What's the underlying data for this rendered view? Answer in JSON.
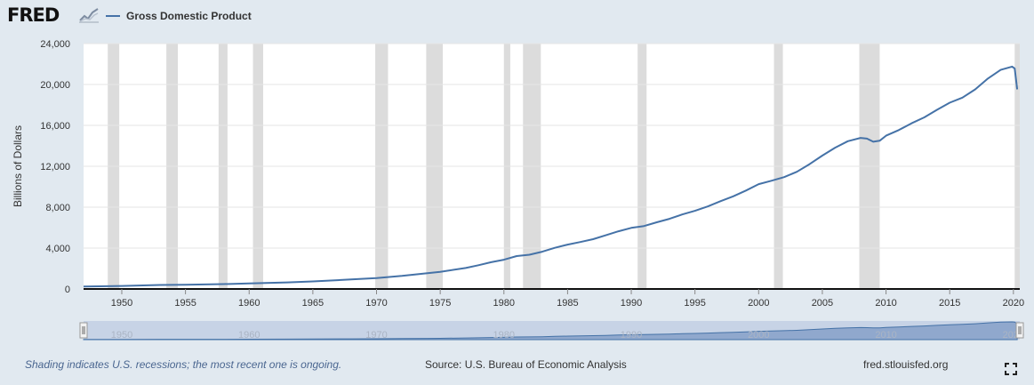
{
  "header": {
    "logo": "FRED",
    "logo_icon": "trend-line-icon"
  },
  "chart_data": {
    "type": "line",
    "title": "",
    "xlabel": "",
    "ylabel": "Billions of Dollars",
    "xlim": [
      1947,
      2020.5
    ],
    "ylim": [
      0,
      24000
    ],
    "y_ticks": [
      0,
      4000,
      8000,
      12000,
      16000,
      20000,
      24000
    ],
    "y_tick_labels": [
      "0",
      "4,000",
      "8,000",
      "12,000",
      "16,000",
      "20,000",
      "24,000"
    ],
    "x_ticks": [
      1950,
      1955,
      1960,
      1965,
      1970,
      1975,
      1980,
      1985,
      1990,
      1995,
      2000,
      2005,
      2010,
      2015,
      2020
    ],
    "x_tick_labels": [
      "1950",
      "1955",
      "1960",
      "1965",
      "1970",
      "1975",
      "1980",
      "1985",
      "1990",
      "1995",
      "2000",
      "2005",
      "2010",
      "2015",
      "2020"
    ],
    "grid": true,
    "legend_position": "top-left",
    "line_color": "#4572a7",
    "recession_color": "#dcdcdc",
    "recessions": [
      [
        1948.9,
        1949.8
      ],
      [
        1953.5,
        1954.4
      ],
      [
        1957.6,
        1958.3
      ],
      [
        1960.3,
        1961.1
      ],
      [
        1969.9,
        1970.9
      ],
      [
        1973.9,
        1975.2
      ],
      [
        1980.0,
        1980.5
      ],
      [
        1981.5,
        1982.9
      ],
      [
        1990.5,
        1991.2
      ],
      [
        2001.2,
        2001.9
      ],
      [
        2007.9,
        2009.5
      ],
      [
        2020.1,
        2020.5
      ]
    ],
    "series": [
      {
        "name": "Gross Domestic Product",
        "x": [
          1947,
          1950,
          1953,
          1955,
          1958,
          1960,
          1963,
          1965,
          1968,
          1970,
          1972,
          1974,
          1975,
          1977,
          1978,
          1979,
          1980,
          1981,
          1982,
          1983,
          1984,
          1985,
          1986,
          1987,
          1988,
          1989,
          1990,
          1991,
          1992,
          1993,
          1994,
          1995,
          1996,
          1997,
          1998,
          1999,
          2000,
          2001,
          2002,
          2003,
          2004,
          2005,
          2006,
          2007,
          2008,
          2008.5,
          2009,
          2009.5,
          2010,
          2011,
          2012,
          2013,
          2014,
          2015,
          2016,
          2017,
          2018,
          2019,
          2019.9,
          2020.1,
          2020.3
        ],
        "values": [
          245,
          300,
          390,
          420,
          480,
          540,
          640,
          740,
          930,
          1070,
          1280,
          1550,
          1680,
          2050,
          2320,
          2620,
          2860,
          3220,
          3350,
          3640,
          4030,
          4340,
          4590,
          4870,
          5250,
          5640,
          5970,
          6160,
          6520,
          6860,
          7290,
          7640,
          8070,
          8580,
          9060,
          9630,
          10250,
          10580,
          10940,
          11460,
          12210,
          13040,
          13820,
          14450,
          14770,
          14700,
          14400,
          14500,
          14990,
          15540,
          16200,
          16780,
          17520,
          18220,
          18710,
          19520,
          20580,
          21430,
          21750,
          21560,
          19520
        ]
      }
    ]
  },
  "navigator": {
    "x_ticks": [
      1950,
      1960,
      1970,
      1980,
      1990,
      2000,
      2010,
      2020
    ],
    "x_tick_labels": [
      "1950",
      "1960",
      "1970",
      "1980",
      "1990",
      "2000",
      "2010",
      "2020"
    ]
  },
  "footer": {
    "note": "Shading indicates U.S. recessions; the most recent one is ongoing.",
    "source": "Source: U.S. Bureau of Economic Analysis",
    "site": "fred.stlouisfed.org",
    "fullscreen_icon": "fullscreen-icon"
  }
}
